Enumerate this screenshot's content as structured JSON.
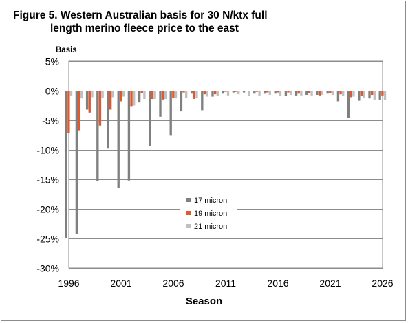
{
  "chart_data": {
    "type": "bar",
    "title_lines": [
      "Figure 5. Western Australian basis for 30 N/ktx full",
      "length merino fleece price to the east"
    ],
    "ylabel": "Basis",
    "xlabel": "Season",
    "ylim": [
      -30,
      5
    ],
    "yticks": [
      "5%",
      "0%",
      "-5%",
      "-10%",
      "-15%",
      "-20%",
      "-25%",
      "-30%"
    ],
    "yticks_values": [
      5,
      0,
      -5,
      -10,
      -15,
      -20,
      -25,
      -30
    ],
    "xtick_labels": [
      "1996",
      "2001",
      "2006",
      "2011",
      "2016",
      "2021",
      "2026"
    ],
    "categories": [
      "1996",
      "1997",
      "1998",
      "1999",
      "2000",
      "2001",
      "2002",
      "2003",
      "2004",
      "2005",
      "2006",
      "2007",
      "2008",
      "2009",
      "2010",
      "2011",
      "2012",
      "2013",
      "2014",
      "2015",
      "2016",
      "2017",
      "2018",
      "2019",
      "2020",
      "2021",
      "2022",
      "2023",
      "2024",
      "2025",
      "2026"
    ],
    "series": [
      {
        "name": "17 micron",
        "color": "#808080",
        "values": [
          -25.0,
          -24.3,
          -3.2,
          -15.3,
          -9.8,
          -16.5,
          -15.2,
          -2.0,
          -9.4,
          -4.4,
          -7.6,
          -3.5,
          -0.5,
          -3.3,
          -1.0,
          -0.5,
          -0.3,
          -0.3,
          -0.5,
          -0.5,
          -0.5,
          -0.9,
          -0.8,
          -0.7,
          -0.7,
          -0.5,
          -1.8,
          -4.6,
          -1.7,
          -1.3,
          -1.5
        ]
      },
      {
        "name": "19 micron",
        "color": "#e2572b",
        "values": [
          -7.2,
          -6.7,
          -3.7,
          -5.9,
          -3.2,
          -1.8,
          -2.6,
          -0.4,
          -1.4,
          -1.5,
          -1.2,
          -0.3,
          -1.4,
          -0.6,
          -0.6,
          -0.2,
          -0.2,
          -0.1,
          -0.2,
          -0.3,
          -0.3,
          -0.3,
          -0.5,
          -0.4,
          -0.8,
          -0.4,
          -0.6,
          -1.1,
          -0.9,
          -0.7,
          -0.8
        ]
      },
      {
        "name": "21 micron",
        "color": "#c0c0c0",
        "values": [
          -0.9,
          -1.3,
          -1.1,
          -1.2,
          -1.1,
          -1.0,
          -2.5,
          -1.4,
          -1.4,
          -1.4,
          -1.3,
          -1.2,
          -1.2,
          -1.0,
          -0.9,
          -0.8,
          -0.6,
          -0.9,
          -0.8,
          -0.7,
          -0.9,
          -0.7,
          -0.8,
          -0.8,
          -0.7,
          -0.7,
          -0.9,
          -1.0,
          -1.2,
          -1.5,
          -1.6
        ]
      }
    ],
    "grid": true,
    "legend_position": "lower-center"
  }
}
